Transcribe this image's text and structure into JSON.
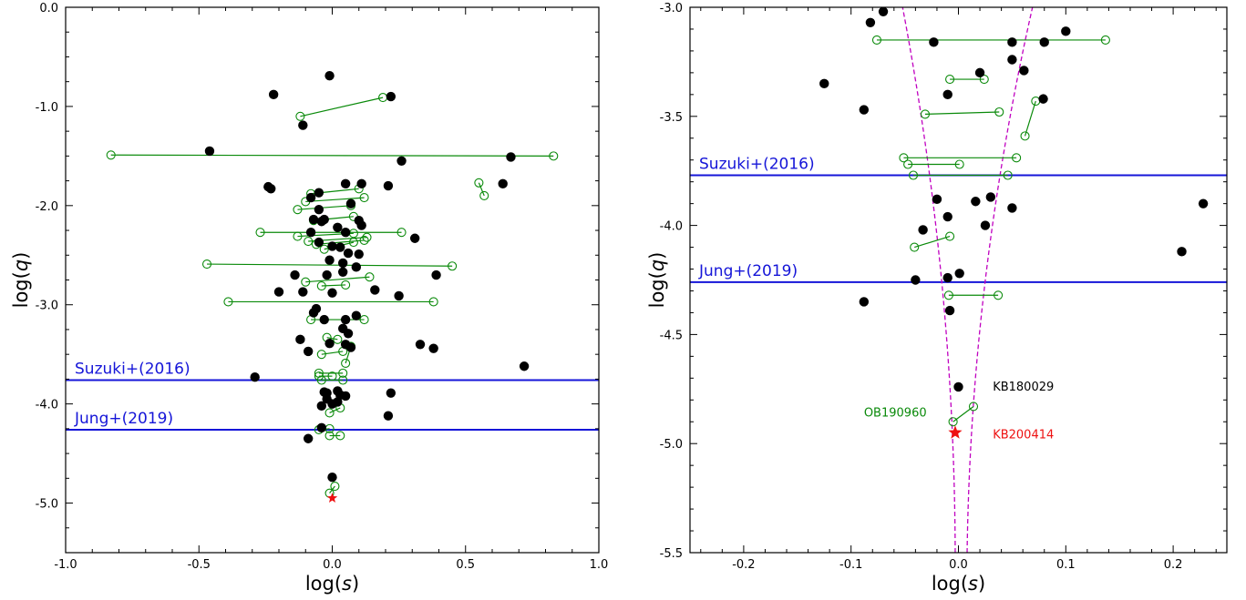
{
  "colors": {
    "planet": "#000000",
    "degenerate": "#0a8a0a",
    "threshold": "#1515d8",
    "highlight": "#ee1111",
    "caustic": "#c000c0"
  },
  "chart_data": [
    {
      "type": "scatter",
      "xlabel_prefix": "log(",
      "xlabel_var": "s",
      "xlabel_suffix": ")",
      "ylabel_prefix": "log(",
      "ylabel_var": "q",
      "ylabel_suffix": ")",
      "xlim": [
        -1.0,
        1.0
      ],
      "ylim": [
        -5.5,
        0.0
      ],
      "xticks": [
        -1.0,
        -0.5,
        0.0,
        0.5,
        1.0
      ],
      "xtick_labels": [
        "-1.0",
        "-0.5",
        "0.0",
        "0.5",
        "1.0"
      ],
      "yticks": [
        0.0,
        -1.0,
        -2.0,
        -3.0,
        -4.0,
        -5.0
      ],
      "ytick_labels": [
        "0.0",
        "-1.0",
        "-2.0",
        "-3.0",
        "-4.0",
        "-5.0"
      ],
      "thresholds": [
        {
          "name": "Suzuki+(2016)",
          "y": -3.76
        },
        {
          "name": "Jung+(2019)",
          "y": -4.26
        }
      ],
      "single": [
        [
          -0.01,
          -0.69
        ],
        [
          -0.22,
          -0.88
        ],
        [
          0.22,
          -0.9
        ],
        [
          -0.11,
          -1.19
        ],
        [
          -0.46,
          -1.45
        ],
        [
          0.26,
          -1.55
        ],
        [
          0.67,
          -1.51
        ],
        [
          -0.24,
          -1.81
        ],
        [
          -0.23,
          -1.83
        ],
        [
          0.11,
          -1.78
        ],
        [
          0.21,
          -1.8
        ],
        [
          0.64,
          -1.78
        ],
        [
          0.05,
          -1.78
        ],
        [
          -0.05,
          -1.87
        ],
        [
          -0.08,
          -1.92
        ],
        [
          0.07,
          -1.98
        ],
        [
          -0.05,
          -2.04
        ],
        [
          -0.07,
          -2.14
        ],
        [
          -0.04,
          -2.16
        ],
        [
          -0.03,
          -2.14
        ],
        [
          0.1,
          -2.15
        ],
        [
          0.11,
          -2.2
        ],
        [
          0.02,
          -2.22
        ],
        [
          -0.08,
          -2.27
        ],
        [
          0.05,
          -2.27
        ],
        [
          -0.05,
          -2.37
        ],
        [
          0.0,
          -2.41
        ],
        [
          0.03,
          -2.42
        ],
        [
          0.1,
          -2.49
        ],
        [
          0.31,
          -2.33
        ],
        [
          0.06,
          -2.48
        ],
        [
          -0.01,
          -2.55
        ],
        [
          0.04,
          -2.58
        ],
        [
          -0.14,
          -2.7
        ],
        [
          -0.02,
          -2.7
        ],
        [
          0.04,
          -2.67
        ],
        [
          0.09,
          -2.62
        ],
        [
          0.39,
          -2.7
        ],
        [
          -0.2,
          -2.87
        ],
        [
          -0.11,
          -2.87
        ],
        [
          0.0,
          -2.88
        ],
        [
          0.16,
          -2.85
        ],
        [
          0.25,
          -2.91
        ],
        [
          -0.07,
          -3.08
        ],
        [
          -0.06,
          -3.04
        ],
        [
          -0.03,
          -3.15
        ],
        [
          0.05,
          -3.15
        ],
        [
          0.09,
          -3.11
        ],
        [
          -0.12,
          -3.35
        ],
        [
          -0.09,
          -3.47
        ],
        [
          0.04,
          -3.24
        ],
        [
          0.06,
          -3.29
        ],
        [
          -0.01,
          -3.39
        ],
        [
          0.07,
          -3.43
        ],
        [
          0.05,
          -3.4
        ],
        [
          0.33,
          -3.4
        ],
        [
          0.38,
          -3.44
        ],
        [
          -0.29,
          -3.73
        ],
        [
          0.72,
          -3.62
        ],
        [
          0.22,
          -3.89
        ],
        [
          -0.03,
          -3.88
        ],
        [
          -0.02,
          -3.89
        ],
        [
          0.02,
          -3.87
        ],
        [
          0.03,
          -3.91
        ],
        [
          0.05,
          -3.92
        ],
        [
          -0.02,
          -3.95
        ],
        [
          0.02,
          -3.98
        ],
        [
          0.0,
          -4.0
        ],
        [
          -0.04,
          -4.02
        ],
        [
          -0.04,
          -4.24
        ],
        [
          0.21,
          -4.12
        ],
        [
          -0.09,
          -4.35
        ],
        [
          0.0,
          -4.74
        ]
      ],
      "pairs": [
        [
          [
            -0.12,
            -1.1
          ],
          [
            0.19,
            -0.91
          ]
        ],
        [
          [
            -0.83,
            -1.49
          ],
          [
            0.83,
            -1.5
          ]
        ],
        [
          [
            0.55,
            -1.77
          ],
          [
            0.57,
            -1.9
          ]
        ],
        [
          [
            -0.08,
            -1.88
          ],
          [
            0.1,
            -1.83
          ]
        ],
        [
          [
            -0.1,
            -1.96
          ],
          [
            0.12,
            -1.92
          ]
        ],
        [
          [
            -0.13,
            -2.04
          ],
          [
            0.07,
            -2.0
          ]
        ],
        [
          [
            -0.07,
            -2.15
          ],
          [
            0.08,
            -2.11
          ]
        ],
        [
          [
            -0.27,
            -2.27
          ],
          [
            0.26,
            -2.27
          ]
        ],
        [
          [
            -0.13,
            -2.31
          ],
          [
            0.08,
            -2.28
          ]
        ],
        [
          [
            -0.09,
            -2.36
          ],
          [
            0.13,
            -2.32
          ]
        ],
        [
          [
            -0.06,
            -2.39
          ],
          [
            0.12,
            -2.35
          ]
        ],
        [
          [
            -0.03,
            -2.44
          ],
          [
            0.08,
            -2.37
          ]
        ],
        [
          [
            -0.47,
            -2.59
          ],
          [
            0.45,
            -2.61
          ]
        ],
        [
          [
            -0.1,
            -2.77
          ],
          [
            0.14,
            -2.72
          ]
        ],
        [
          [
            -0.04,
            -2.81
          ],
          [
            0.05,
            -2.8
          ]
        ],
        [
          [
            -0.39,
            -2.97
          ],
          [
            0.38,
            -2.97
          ]
        ],
        [
          [
            -0.08,
            -3.15
          ],
          [
            0.12,
            -3.15
          ]
        ],
        [
          [
            -0.02,
            -3.33
          ],
          [
            0.02,
            -3.35
          ]
        ],
        [
          [
            -0.04,
            -3.5
          ],
          [
            0.04,
            -3.47
          ]
        ],
        [
          [
            0.05,
            -3.59
          ],
          [
            0.07,
            -3.42
          ]
        ],
        [
          [
            -0.05,
            -3.69
          ],
          [
            0.04,
            -3.69
          ]
        ],
        [
          [
            -0.05,
            -3.72
          ],
          [
            0.0,
            -3.72
          ]
        ],
        [
          [
            -0.04,
            -3.76
          ],
          [
            0.04,
            -3.76
          ]
        ],
        [
          [
            -0.01,
            -4.09
          ],
          [
            0.03,
            -4.04
          ]
        ],
        [
          [
            -0.05,
            -4.26
          ],
          [
            -0.01,
            -4.25
          ]
        ],
        [
          [
            -0.01,
            -4.32
          ],
          [
            0.03,
            -4.32
          ]
        ],
        [
          [
            -0.01,
            -4.9
          ],
          [
            0.01,
            -4.83
          ]
        ]
      ],
      "star": [
        0.0,
        -4.95
      ]
    },
    {
      "type": "scatter",
      "xlabel_prefix": "log(",
      "xlabel_var": "s",
      "xlabel_suffix": ")",
      "ylabel_prefix": "log(",
      "ylabel_var": "q",
      "ylabel_suffix": ")",
      "xlim": [
        -0.25,
        0.25
      ],
      "ylim": [
        -5.5,
        -3.0
      ],
      "xticks": [
        -0.2,
        -0.1,
        0.0,
        0.1,
        0.2
      ],
      "xtick_labels": [
        "-0.2",
        "-0.1",
        "0.0",
        "0.1",
        "0.2"
      ],
      "yticks": [
        -3.0,
        -3.5,
        -4.0,
        -4.5,
        -5.0,
        -5.5
      ],
      "ytick_labels": [
        "-3.0",
        "-3.5",
        "-4.0",
        "-4.5",
        "-5.0",
        "-5.5"
      ],
      "thresholds": [
        {
          "name": "Suzuki+(2016)",
          "y": -3.77
        },
        {
          "name": "Jung+(2019)",
          "y": -4.26
        }
      ],
      "single": [
        [
          -0.07,
          -3.02
        ],
        [
          -0.082,
          -3.07
        ],
        [
          -0.023,
          -3.16
        ],
        [
          0.05,
          -3.16
        ],
        [
          0.08,
          -3.16
        ],
        [
          0.1,
          -3.11
        ],
        [
          0.05,
          -3.24
        ],
        [
          0.061,
          -3.29
        ],
        [
          0.02,
          -3.3
        ],
        [
          -0.125,
          -3.35
        ],
        [
          -0.01,
          -3.4
        ],
        [
          0.079,
          -3.42
        ],
        [
          -0.088,
          -3.47
        ],
        [
          -0.02,
          -3.88
        ],
        [
          0.016,
          -3.89
        ],
        [
          0.03,
          -3.87
        ],
        [
          0.05,
          -3.92
        ],
        [
          -0.01,
          -3.96
        ],
        [
          0.025,
          -4.0
        ],
        [
          -0.033,
          -4.02
        ],
        [
          0.228,
          -3.9
        ],
        [
          0.208,
          -4.12
        ],
        [
          -0.04,
          -4.25
        ],
        [
          -0.01,
          -4.24
        ],
        [
          0.001,
          -4.22
        ],
        [
          -0.088,
          -4.35
        ],
        [
          -0.008,
          -4.39
        ],
        [
          0.0,
          -4.74
        ]
      ],
      "pairs": [
        [
          [
            -0.076,
            -3.15
          ],
          [
            0.137,
            -3.15
          ]
        ],
        [
          [
            -0.008,
            -3.33
          ],
          [
            0.024,
            -3.33
          ]
        ],
        [
          [
            -0.031,
            -3.49
          ],
          [
            0.038,
            -3.48
          ]
        ],
        [
          [
            0.062,
            -3.59
          ],
          [
            0.072,
            -3.43
          ]
        ],
        [
          [
            -0.051,
            -3.69
          ],
          [
            0.054,
            -3.69
          ]
        ],
        [
          [
            -0.047,
            -3.72
          ],
          [
            0.001,
            -3.72
          ]
        ],
        [
          [
            -0.042,
            -3.77
          ],
          [
            0.046,
            -3.77
          ]
        ],
        [
          [
            -0.041,
            -4.1
          ],
          [
            -0.008,
            -4.05
          ]
        ],
        [
          [
            -0.009,
            -4.32
          ],
          [
            0.037,
            -4.32
          ]
        ],
        [
          [
            -0.005,
            -4.9
          ],
          [
            0.014,
            -4.83
          ]
        ]
      ],
      "star": [
        -0.003,
        -4.95
      ],
      "annotations": [
        {
          "text": "KB180029",
          "color": "#000000",
          "x": 0.032,
          "y": -4.74
        },
        {
          "text": "OB190960",
          "color": "#0a8a0a",
          "x": -0.088,
          "y": -4.86
        },
        {
          "text": "KB200414",
          "color": "#ee1111",
          "x": 0.032,
          "y": -4.96
        }
      ]
    }
  ]
}
